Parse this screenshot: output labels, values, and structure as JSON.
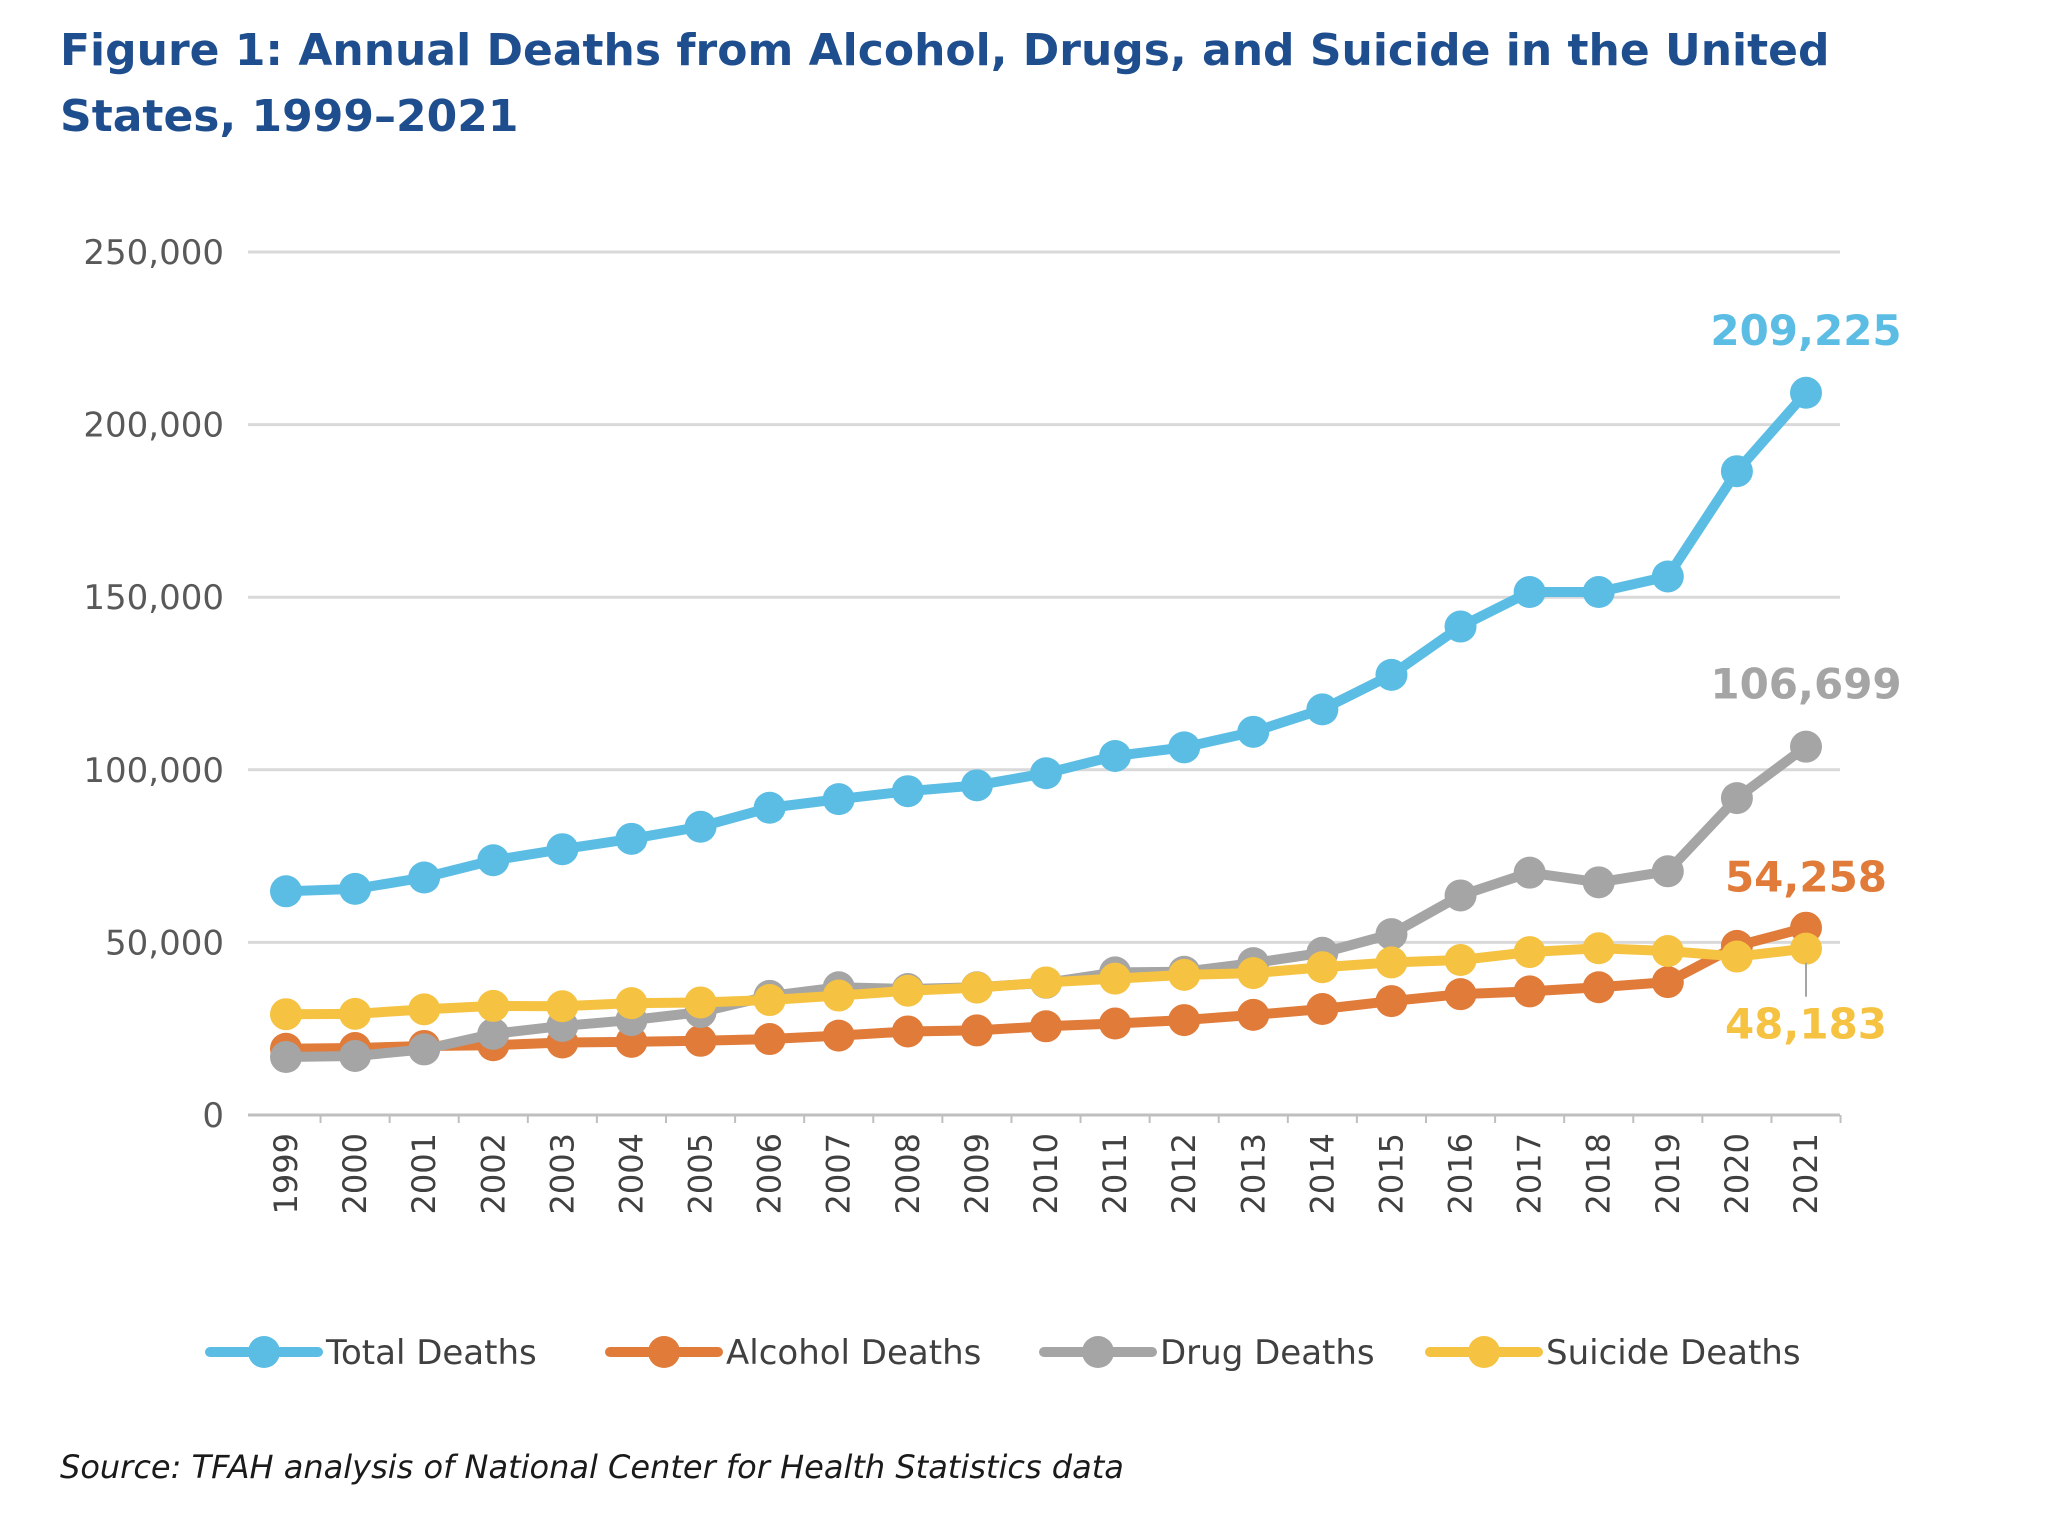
{
  "figure": {
    "title": "Figure 1: Annual Deaths from Alcohol, Drugs, and Suicide in the United States, 1999–2021",
    "source": "Source: TFAH analysis of National Center for Health Statistics data"
  },
  "chart_data": {
    "type": "line",
    "title": "Figure 1: Annual Deaths from Alcohol, Drugs, and Suicide in the United States, 1999–2021",
    "xlabel": "",
    "ylabel": "",
    "ylim": [
      0,
      250000
    ],
    "yticks": [
      0,
      50000,
      100000,
      150000,
      200000,
      250000
    ],
    "ytick_labels": [
      "0",
      "50,000",
      "100,000",
      "150,000",
      "200,000",
      "250,000"
    ],
    "grid": true,
    "legend_position": "bottom",
    "categories": [
      "1999",
      "2000",
      "2001",
      "2002",
      "2003",
      "2004",
      "2005",
      "2006",
      "2007",
      "2008",
      "2009",
      "2010",
      "2011",
      "2012",
      "2013",
      "2014",
      "2015",
      "2016",
      "2017",
      "2018",
      "2019",
      "2020",
      "2021"
    ],
    "series": [
      {
        "name": "Total Deaths",
        "color": "#5bbde4",
        "values": [
          64800,
          65500,
          68800,
          73800,
          77000,
          80000,
          83500,
          89000,
          91500,
          93800,
          95500,
          99000,
          104000,
          106500,
          111000,
          117500,
          127500,
          141500,
          151500,
          151500,
          156000,
          186500,
          209225
        ],
        "end_label": "209,225",
        "end_label_color": "#5bbde4"
      },
      {
        "name": "Alcohol Deaths",
        "color": "#e07b39",
        "values": [
          19200,
          19400,
          20000,
          20200,
          21000,
          21200,
          21500,
          22000,
          23000,
          24200,
          24500,
          25700,
          26500,
          27500,
          29000,
          30700,
          33000,
          35000,
          35800,
          37000,
          38500,
          49000,
          54258
        ],
        "end_label": "54,258",
        "end_label_color": "#e07b39"
      },
      {
        "name": "Drug Deaths",
        "color": "#a5a5a5",
        "values": [
          16800,
          17100,
          19000,
          23500,
          25800,
          27500,
          29800,
          34500,
          37000,
          36500,
          37000,
          38300,
          41300,
          41500,
          44000,
          47000,
          52400,
          63600,
          70200,
          67400,
          70600,
          91800,
          106699
        ],
        "end_label": "106,699",
        "end_label_color": "#a5a5a5"
      },
      {
        "name": "Suicide Deaths",
        "color": "#f5c242",
        "values": [
          29200,
          29300,
          30600,
          31600,
          31500,
          32400,
          32600,
          33300,
          34600,
          36000,
          36900,
          38400,
          39500,
          40600,
          41100,
          42800,
          44200,
          44900,
          47200,
          48300,
          47500,
          45900,
          48183
        ],
        "end_label": "48,183",
        "end_label_color": "#f5c242"
      }
    ]
  }
}
